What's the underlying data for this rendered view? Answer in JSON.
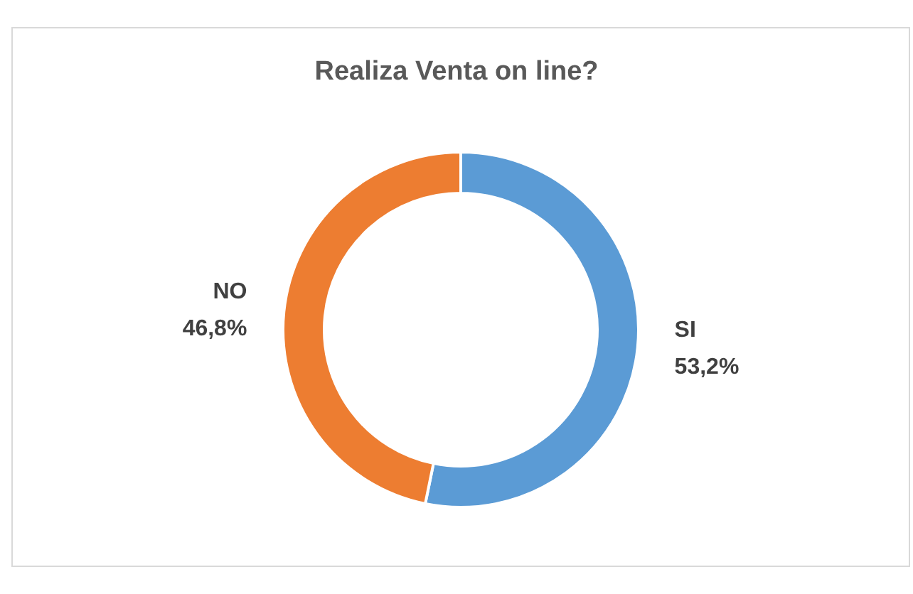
{
  "chart_data": {
    "type": "donut",
    "title": "Realiza Venta on line?",
    "categories": [
      "SI",
      "NO"
    ],
    "values": [
      53.2,
      46.8
    ],
    "colors": [
      "#5b9bd5",
      "#ed7d31"
    ],
    "value_labels": [
      "53,2%",
      "46,8%"
    ],
    "legend": false
  }
}
